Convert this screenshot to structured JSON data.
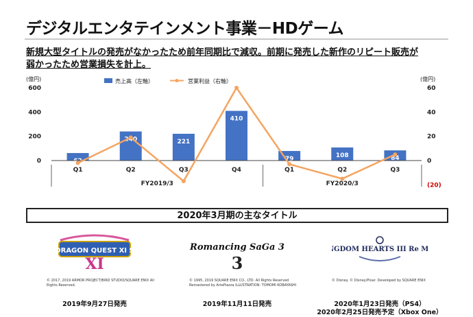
{
  "slide": {
    "title": "デジタルエンタテインメント事業－HDゲーム",
    "subtitle_line1": "新規大型タイトルの発売がなかったため前年同期比で減収。前期に発売した新作のリピート販売が",
    "subtitle_line2": "弱かったため営業損失を計上。"
  },
  "chart_data": {
    "type": "bar",
    "categories": [
      "Q1",
      "Q2",
      "Q3",
      "Q4",
      "Q1",
      "Q2",
      "Q3"
    ],
    "groups": [
      {
        "label": "FY2019/3",
        "categories": [
          "Q1",
          "Q2",
          "Q3",
          "Q4"
        ]
      },
      {
        "label": "FY2020/3",
        "categories": [
          "Q1",
          "Q2",
          "Q3"
        ]
      }
    ],
    "series": [
      {
        "name": "売上高（左軸）",
        "type": "bar",
        "axis": "left",
        "color": "#4472c4",
        "values": [
          62,
          240,
          221,
          410,
          79,
          108,
          84
        ],
        "labels": [
          "62",
          "240",
          "221",
          "410",
          "79",
          "108",
          "84"
        ]
      },
      {
        "name": "営業利益（右軸）",
        "type": "line",
        "axis": "right",
        "color": "#f4a460",
        "values": [
          -2,
          19,
          -17,
          60,
          -3,
          -15,
          5
        ]
      }
    ],
    "left_axis": {
      "unit": "(億円)",
      "ticks": [
        "600",
        "400",
        "200",
        "0"
      ],
      "range": [
        0,
        600
      ]
    },
    "right_axis": {
      "unit": "(億円)",
      "ticks": [
        "60",
        "40",
        "20",
        "0",
        "(20)"
      ],
      "range": [
        -20,
        60
      ]
    },
    "gridlines": false,
    "legend_position": "top"
  },
  "section": {
    "heading": "2020年3月期の主なタイトル"
  },
  "titles": [
    {
      "logo_text": "DRAGON QUEST XI S",
      "copyright": "© 2017, 2019 ARMOR PROJECT/BIRD STUDIO/SQUARE ENIX All Rights Reserved.",
      "release": [
        "2019年9月27日発売"
      ]
    },
    {
      "logo_text": "Romancing SaGa 3",
      "copyright": "© 1995, 2019 SQUARE ENIX CO., LTD. All Rights Reserved Remastered by ArtePiazza ILLUSTRATION: TOMOMI KOBAYASHI",
      "release": [
        "2019年11月11日発売"
      ]
    },
    {
      "logo_text": "KINGDOM HEARTS III Re Mind",
      "copyright": "© Disney. © Disney/Pixar. Developed by SQUARE ENIX",
      "release": [
        "2020年1月23日発売（PS4）",
        "2020年2月25日発売予定（Xbox One）"
      ]
    }
  ]
}
